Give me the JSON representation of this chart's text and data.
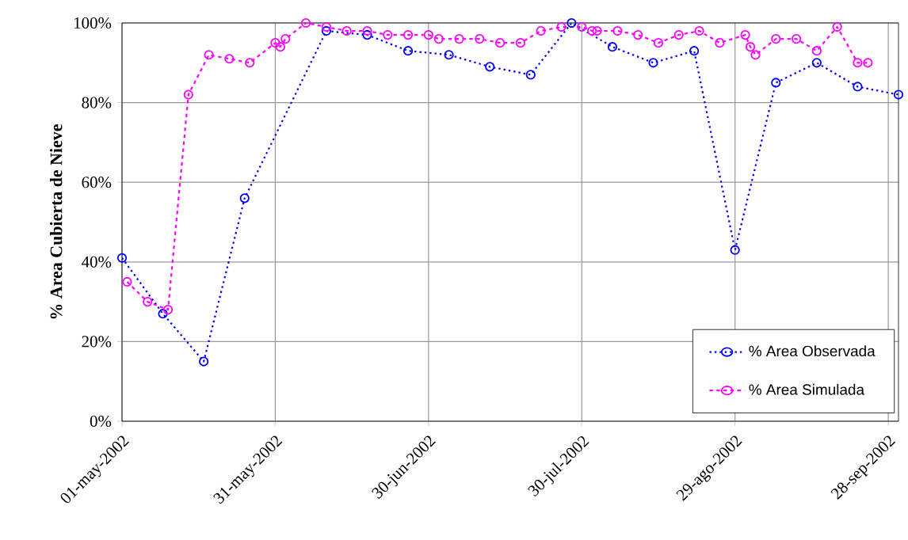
{
  "chart_data": {
    "type": "line",
    "ylabel": "% Area Cubierta de Nieve",
    "xlim": [
      "2002-05-01",
      "2002-09-30"
    ],
    "xticks": [
      {
        "value": "2002-05-01",
        "label": "01-may-2002"
      },
      {
        "value": "2002-05-31",
        "label": "31-may-2002"
      },
      {
        "value": "2002-06-30",
        "label": "30-jun-2002"
      },
      {
        "value": "2002-07-30",
        "label": "30-jul-2002"
      },
      {
        "value": "2002-08-29",
        "label": "29-ago-2002"
      },
      {
        "value": "2002-09-28",
        "label": "28-sep-2002"
      }
    ],
    "ylim": [
      0,
      100
    ],
    "yticks": [
      {
        "value": 0,
        "label": "0%"
      },
      {
        "value": 20,
        "label": "20%"
      },
      {
        "value": 40,
        "label": "40%"
      },
      {
        "value": 60,
        "label": "60%"
      },
      {
        "value": 80,
        "label": "80%"
      },
      {
        "value": 100,
        "label": "100%"
      }
    ],
    "grid": true,
    "legend": "bottom right",
    "marker": "circle",
    "series": [
      {
        "name": "% Area Observada",
        "color": "#0000ff",
        "line_style": "dotted",
        "x": [
          "2002-05-01",
          "2002-05-09",
          "2002-05-17",
          "2002-05-25",
          "2002-06-10",
          "2002-06-18",
          "2002-06-26",
          "2002-07-04",
          "2002-07-12",
          "2002-07-20",
          "2002-07-28",
          "2002-08-05",
          "2002-08-13",
          "2002-08-21",
          "2002-08-29",
          "2002-09-06",
          "2002-09-14",
          "2002-09-22",
          "2002-09-30"
        ],
        "values": [
          41,
          27,
          15,
          56,
          98,
          97,
          93,
          92,
          89,
          87,
          100,
          94,
          90,
          93,
          43,
          85,
          90,
          84,
          82
        ]
      },
      {
        "name": "% Area Simulada",
        "color": "#ff00ff",
        "line_style": "dashed",
        "x": [
          "2002-05-02",
          "2002-05-06",
          "2002-05-10",
          "2002-05-14",
          "2002-05-18",
          "2002-05-22",
          "2002-05-26",
          "2002-05-31",
          "2002-06-01",
          "2002-06-02",
          "2002-06-06",
          "2002-06-10",
          "2002-06-14",
          "2002-06-18",
          "2002-06-22",
          "2002-06-26",
          "2002-06-30",
          "2002-07-02",
          "2002-07-06",
          "2002-07-10",
          "2002-07-14",
          "2002-07-18",
          "2002-07-22",
          "2002-07-26",
          "2002-07-30",
          "2002-08-01",
          "2002-08-02",
          "2002-08-06",
          "2002-08-10",
          "2002-08-14",
          "2002-08-18",
          "2002-08-22",
          "2002-08-26",
          "2002-08-31",
          "2002-09-01",
          "2002-09-02",
          "2002-09-06",
          "2002-09-10",
          "2002-09-14",
          "2002-09-18",
          "2002-09-22",
          "2002-09-24"
        ],
        "values": [
          35,
          30,
          28,
          82,
          92,
          91,
          90,
          95,
          94,
          96,
          100,
          99,
          98,
          98,
          97,
          97,
          97,
          96,
          96,
          96,
          95,
          95,
          98,
          99,
          99,
          98,
          98,
          98,
          97,
          95,
          97,
          98,
          95,
          97,
          94,
          92,
          96,
          96,
          93,
          99,
          90,
          90
        ]
      }
    ]
  }
}
